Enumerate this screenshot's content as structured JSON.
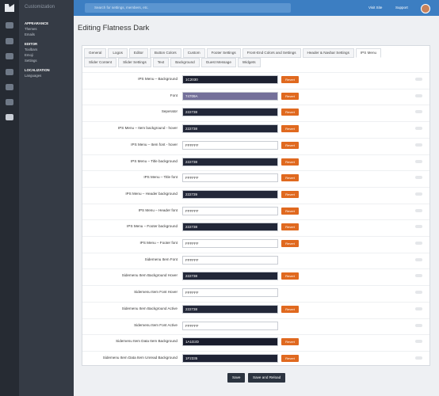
{
  "sidebar": {
    "title": "Customization",
    "sections": [
      {
        "heading": "APPEARANCE",
        "items": [
          "Themes",
          "Emails"
        ]
      },
      {
        "heading": "EDITOR",
        "items": [
          "Toolbars",
          "Emoji",
          "Settings"
        ]
      },
      {
        "heading": "LOCALIZATION",
        "items": [
          "Languages"
        ]
      }
    ]
  },
  "topbar": {
    "search_placeholder": "Search for settings, members, etc.",
    "links": [
      "Visit Site",
      "Support"
    ]
  },
  "page": {
    "title": "Editing Flatness Dark",
    "tabs_row1": [
      {
        "label": "General"
      },
      {
        "label": "Logos"
      },
      {
        "label": "Editor"
      },
      {
        "label": "Button Colors"
      },
      {
        "label": "Custom"
      },
      {
        "label": "Footer Settings"
      },
      {
        "label": "Front-End Colors and Settings"
      },
      {
        "label": "Header & Navbar Settings"
      },
      {
        "label": "IPS Menu",
        "active": true
      }
    ],
    "tabs_row2": [
      {
        "label": "Slider Content"
      },
      {
        "label": "Slider Settings"
      },
      {
        "label": "Text"
      },
      {
        "label": "Background"
      },
      {
        "label": "Guest Message"
      },
      {
        "label": "Widgets"
      }
    ]
  },
  "revert_label": "Revert",
  "settings": [
    {
      "label": "IPS Menu – Background",
      "value": "1C2030",
      "revert": true
    },
    {
      "label": "Font",
      "value": "74709A",
      "revert": true
    },
    {
      "label": "Seperator",
      "value": "222738",
      "revert": true
    },
    {
      "label": "IPS Menu – Item background - hover",
      "value": "222738",
      "revert": true
    },
    {
      "label": "IPS Menu – Item font - hover",
      "value": "FFFFFF",
      "revert": true
    },
    {
      "label": "IPS Menu – Title background",
      "value": "222738",
      "revert": true
    },
    {
      "label": "IPS Menu – Title font",
      "value": "FFFFFF",
      "revert": true
    },
    {
      "label": "IPS Menu – Header background",
      "value": "222739",
      "revert": true
    },
    {
      "label": "IPS Menu – Header font",
      "value": "FFFFFF",
      "revert": true
    },
    {
      "label": "IPS Menu – Footer background",
      "value": "222738",
      "revert": true
    },
    {
      "label": "IPS Menu – Footer font",
      "value": "FFFFFF",
      "revert": true
    },
    {
      "label": "Sidemenu Item Font",
      "value": "FFFFFF",
      "revert": false
    },
    {
      "label": "Sidemenu Item Background Hover",
      "value": "222738",
      "revert": true
    },
    {
      "label": "Sidemenu Item Font Hover",
      "value": "FFFFFF",
      "revert": false
    },
    {
      "label": "Sidemenu Item Background Active",
      "value": "222738",
      "revert": true
    },
    {
      "label": "Sidemenu Item Font Active",
      "value": "FFFFFF",
      "revert": false
    },
    {
      "label": "Sidemenu Item Data Item Background",
      "value": "1A1D2D",
      "revert": true
    },
    {
      "label": "Sidemenu Item Data Item Unread Background",
      "value": "1F2335",
      "revert": true
    }
  ],
  "buttons": [
    "Save",
    "Save and Reload"
  ]
}
